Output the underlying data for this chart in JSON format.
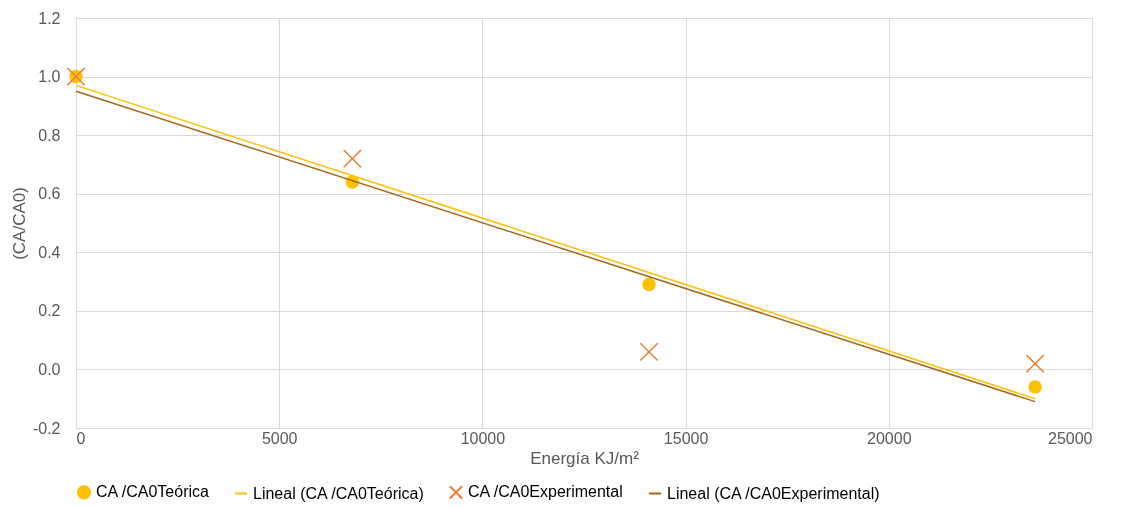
{
  "chart_data": {
    "type": "scatter",
    "xlabel": "Energía KJ/m²",
    "ylabel": "(CA/CA0)",
    "series": [
      {
        "name": "CA /CA0Teórica",
        "marker": "circle",
        "color": "#ffc000",
        "x": [
          0,
          6800,
          14100,
          23600
        ],
        "values": [
          1.0,
          0.64,
          0.29,
          -0.06
        ]
      },
      {
        "name": "Lineal (CA /CA0Teórica)",
        "type": "line",
        "marker": "none",
        "color": "#ffc000",
        "x": [
          0,
          23600
        ],
        "values": [
          0.97,
          -0.1
        ]
      },
      {
        "name": "CA /CA0Experimental",
        "marker": "cross",
        "color": "#ed7d31",
        "x": [
          0,
          6800,
          14100,
          23600
        ],
        "values": [
          1.0,
          0.72,
          0.06,
          0.02
        ]
      },
      {
        "name": "Lineal (CA /CA0Experimental)",
        "type": "line",
        "marker": "none",
        "color": "#a5651d",
        "x": [
          0,
          23600
        ],
        "values": [
          0.95,
          -0.11
        ]
      }
    ],
    "xlim": [
      0,
      25000
    ],
    "xticks": [
      0,
      5000,
      10000,
      15000,
      20000,
      25000
    ],
    "ylim": [
      -0.2,
      1.2
    ],
    "yticks": [
      -0.2,
      {
        "value": 0,
        "label": "0.0"
      },
      0.2,
      0.4,
      0.6,
      0.8,
      {
        "value": 1,
        "label": "1.0"
      },
      1.2
    ],
    "grid": true,
    "legend": "bottom"
  }
}
